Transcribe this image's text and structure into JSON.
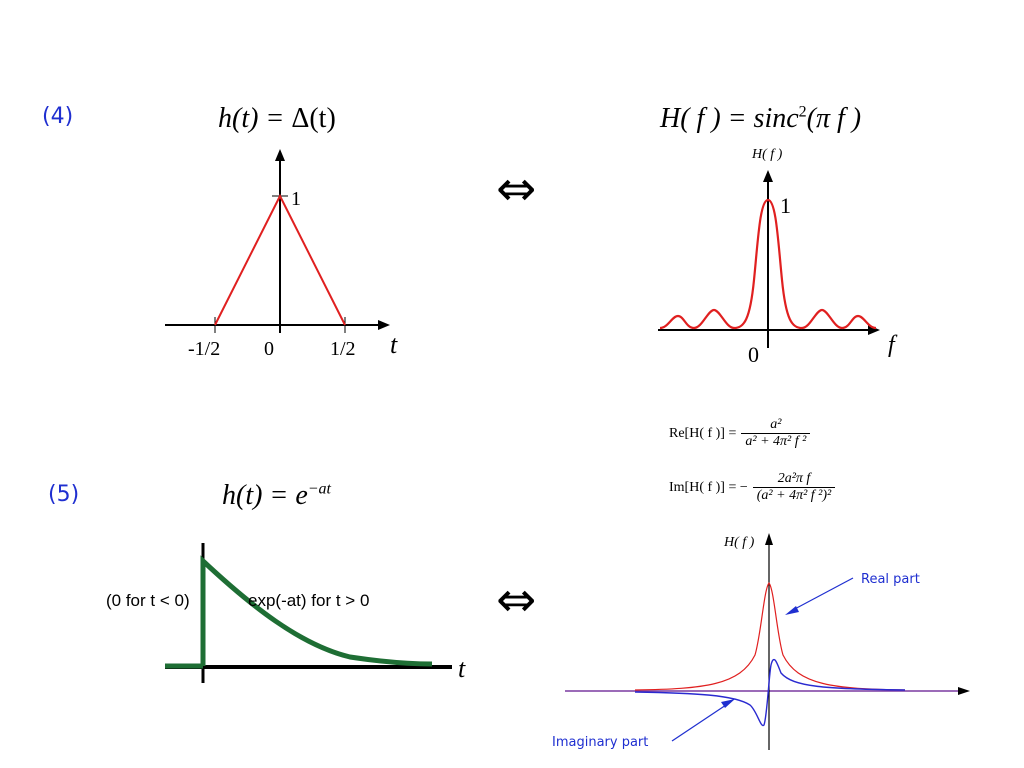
{
  "example4": {
    "number": "(4)",
    "time_eq_lhs": "h(t) = ",
    "time_eq_rhs": "Δ(t)",
    "freq_eq_lhs": "H( f ) = sinc",
    "freq_eq_exp": "2",
    "freq_eq_rhs": "(π f )",
    "equiv": "⇔",
    "time_plot": {
      "peak_label": "1",
      "ticks": [
        "-1/2",
        "0",
        "1/2"
      ],
      "axis_var": "t"
    },
    "freq_plot": {
      "ylabel": "H( f )",
      "peak_label": "1",
      "origin_label": "0",
      "axis_var": "f"
    }
  },
  "example5": {
    "number": "(5)",
    "time_eq_lhs": "h(t) = e",
    "time_eq_exp": "−at",
    "equiv": "⇔",
    "re_eq": {
      "lhs": "Re[H( f )] =",
      "num": "a²",
      "den": "a² + 4π² f ²"
    },
    "im_eq": {
      "lhs": "Im[H( f )] = −",
      "num": "2a²π f",
      "den": "(a² + 4π² f ²)²"
    },
    "time_plot": {
      "left_note": "(0 for t < 0)",
      "right_note": "exp(-at) for t > 0",
      "axis_var": "t"
    },
    "freq_plot": {
      "ylabel": "H( f )",
      "real_label": "Real part",
      "imag_label": "Imaginary part"
    }
  },
  "colors": {
    "red": "#e02020",
    "green": "#1e6e34",
    "blue": "#2a2ad0",
    "annot": "#1f2fd0"
  }
}
